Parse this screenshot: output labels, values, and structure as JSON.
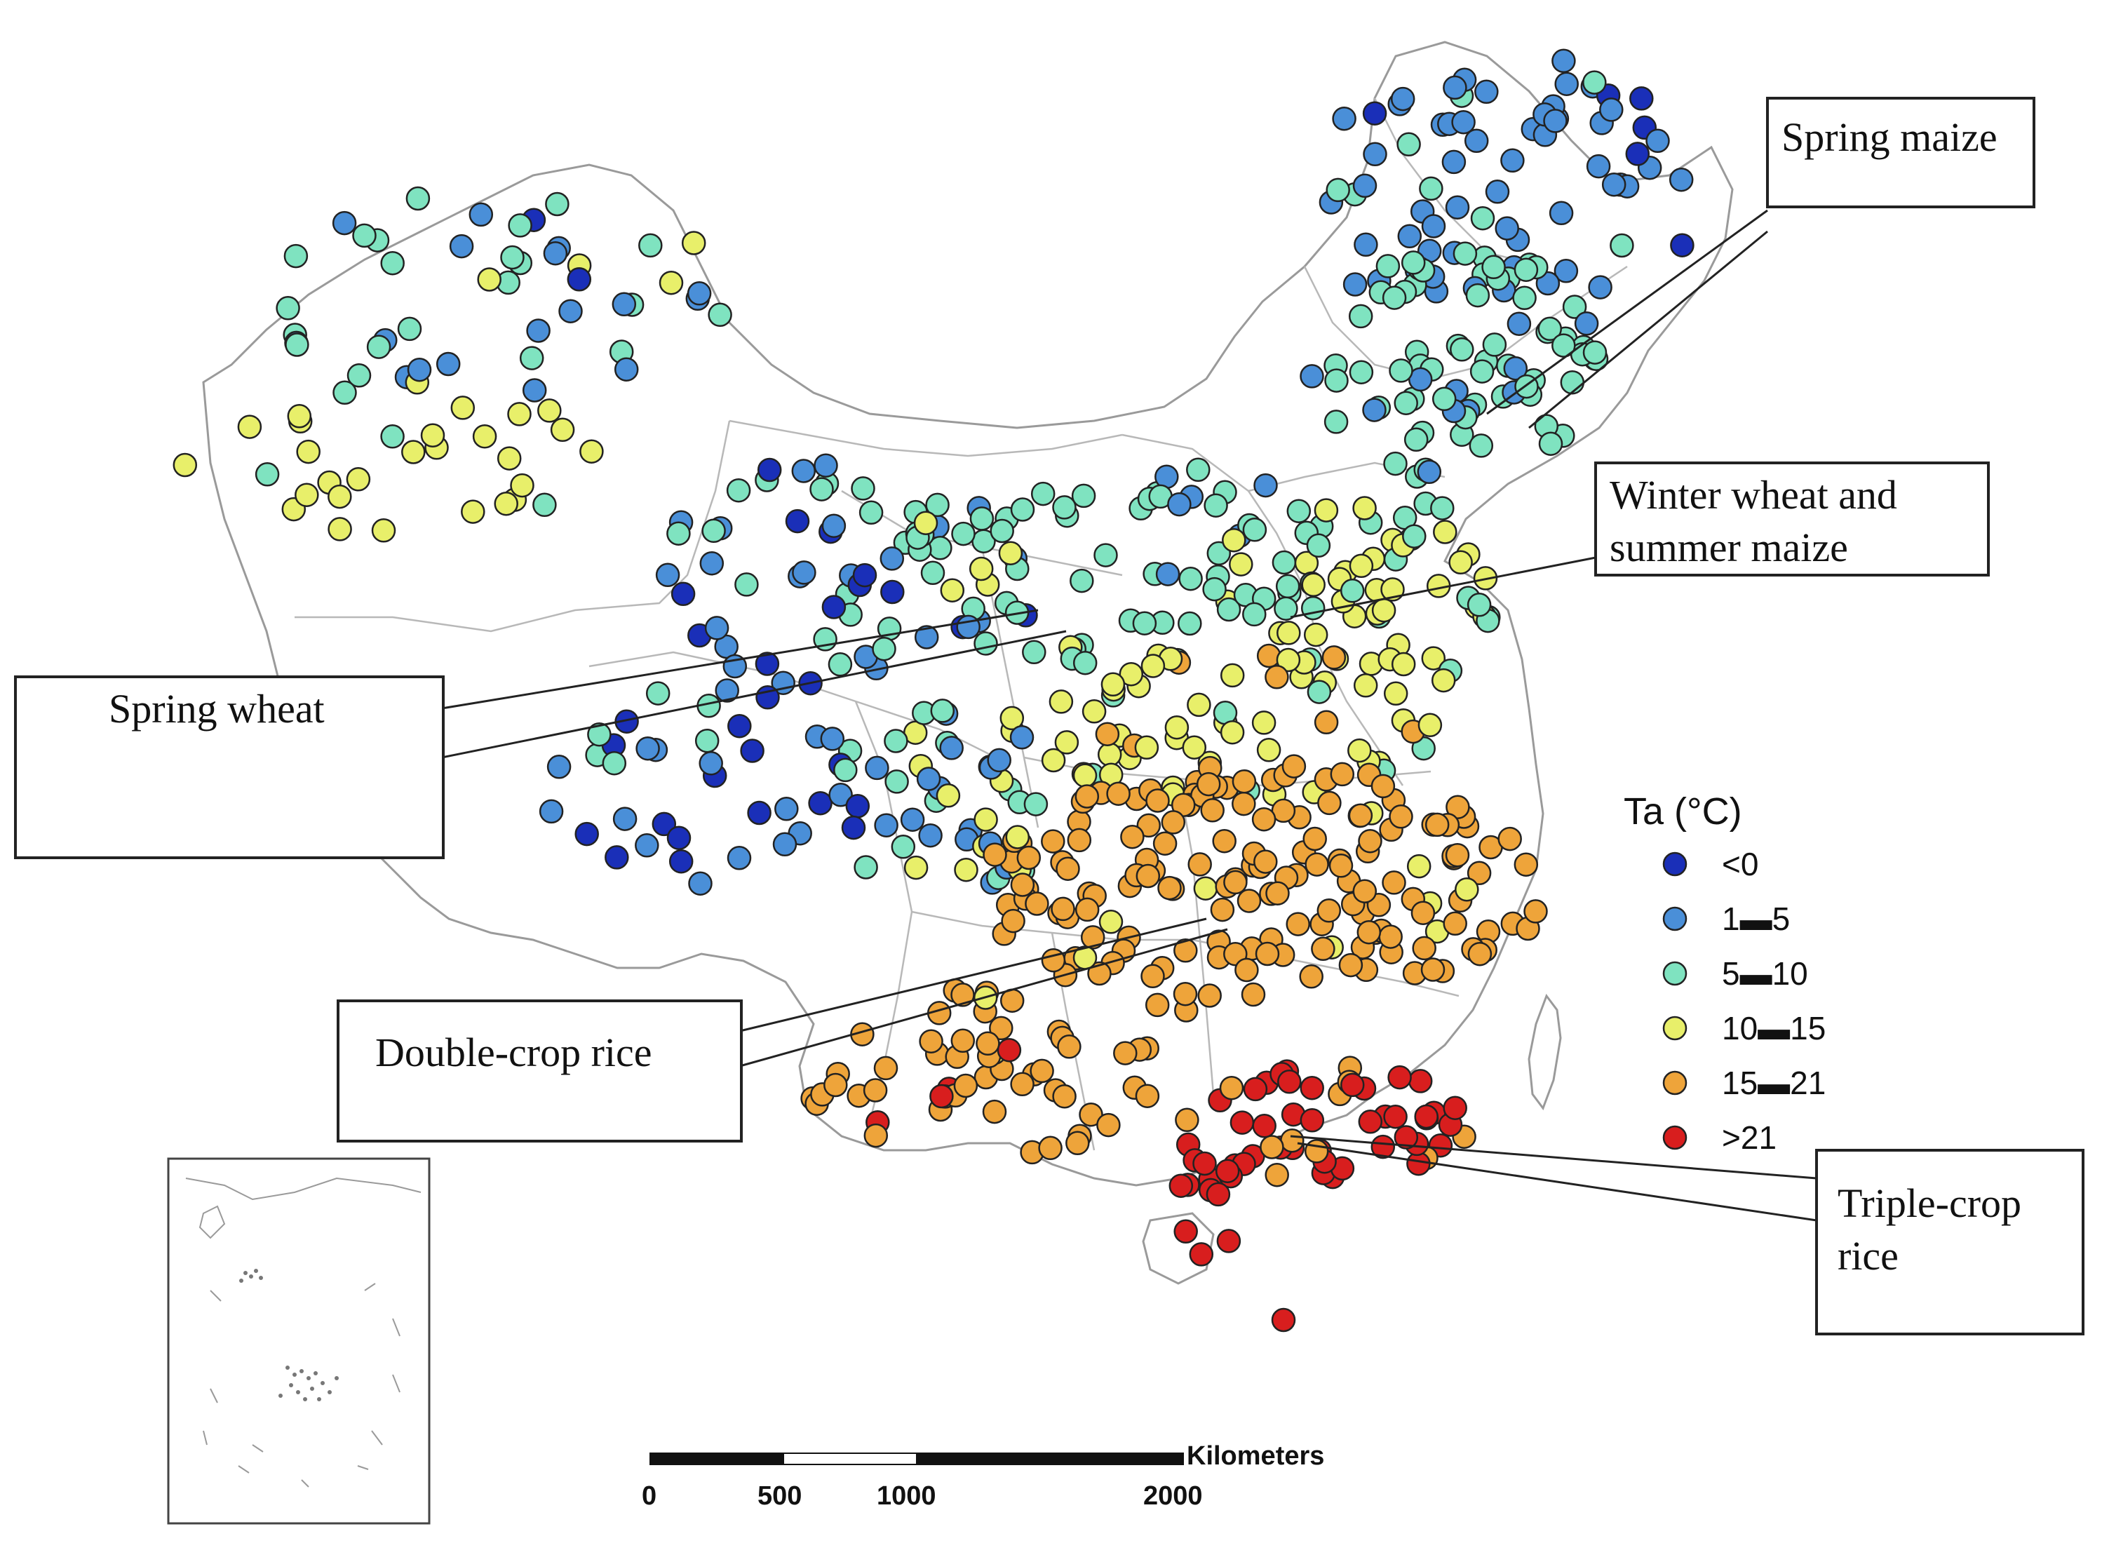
{
  "legend": {
    "title": "Ta (°C)",
    "classes": [
      {
        "label": "<0",
        "color": "#1a2fb8"
      },
      {
        "label": "1▬5",
        "color": "#4a8fd8"
      },
      {
        "label": "5▬10",
        "color": "#7fe3c0"
      },
      {
        "label": "10▬15",
        "color": "#e8ef6a"
      },
      {
        "label": "15▬21",
        "color": "#eea43a"
      },
      {
        "label": ">21",
        "color": "#d81e1e"
      }
    ]
  },
  "callouts": {
    "spring_maize": "Spring maize",
    "winter_wheat_line1": "Winter wheat and",
    "winter_wheat_line2": "summer maize",
    "spring_wheat": "Spring wheat",
    "double_crop_rice": "Double-crop rice",
    "triple_crop_line1": "Triple-crop",
    "triple_crop_line2": "rice"
  },
  "scale_bar": {
    "unit": "Kilometers",
    "ticks": [
      "0",
      "500",
      "1000",
      "2000"
    ]
  }
}
